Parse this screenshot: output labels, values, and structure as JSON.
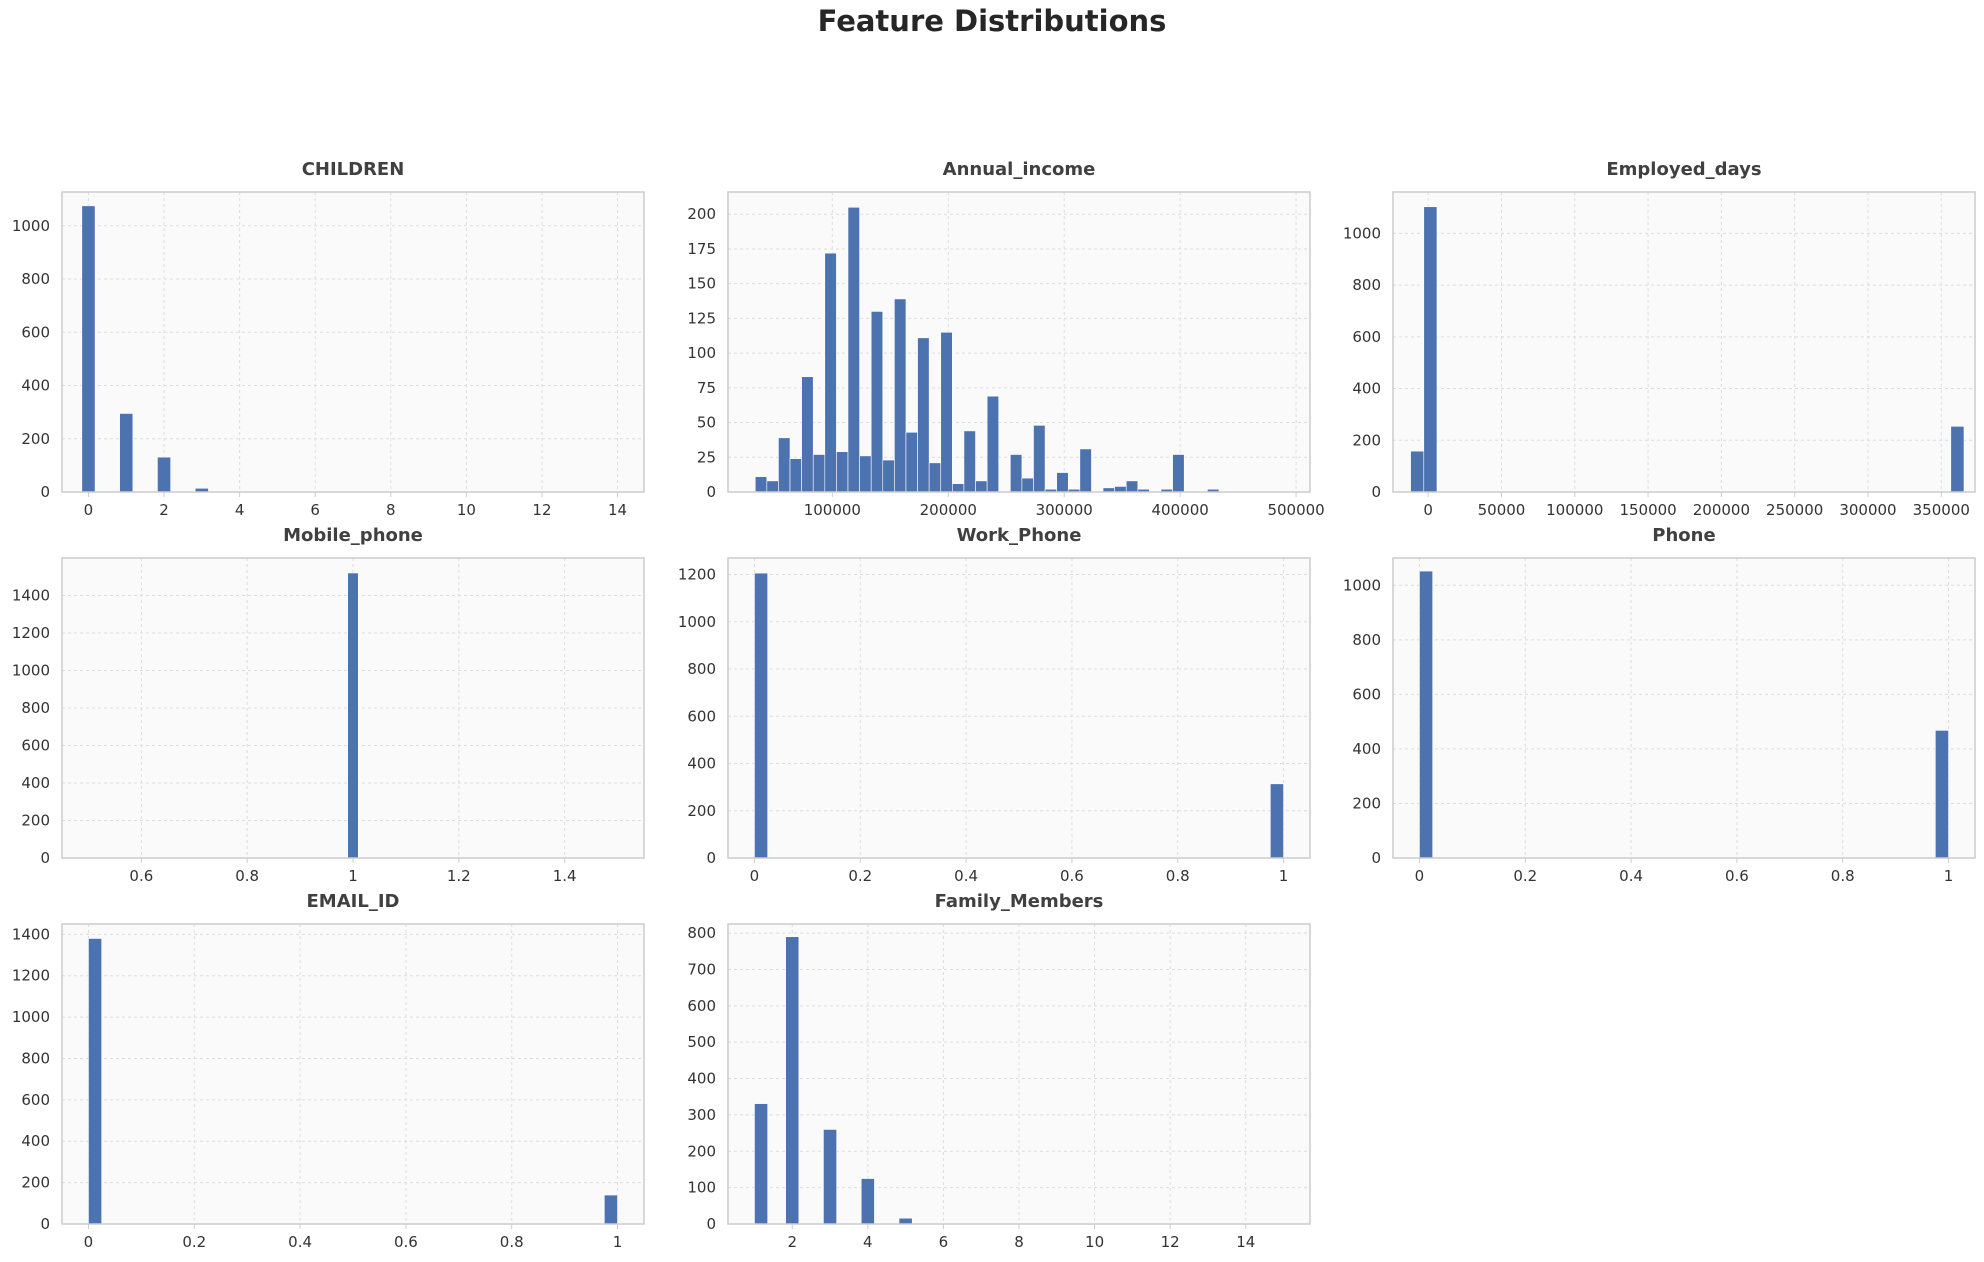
{
  "figure": {
    "title": "Feature Distributions"
  },
  "style": {
    "bar_color": "#4c72b0",
    "plot_bg": "#fafafa",
    "grid_color": "#dddddd",
    "spine_color": "#cccccc",
    "tick_color": "#333333"
  },
  "chart_data": [
    {
      "type": "bar",
      "title": "CHILDREN",
      "xlabel": "",
      "ylabel": "",
      "xlim": [
        -0.7,
        14.7
      ],
      "ylim": [
        0,
        1127
      ],
      "bin_width": 0.35,
      "xticks": [
        0,
        2,
        4,
        6,
        8,
        10,
        12,
        14
      ],
      "yticks": [
        0,
        200,
        400,
        600,
        800,
        1000
      ],
      "grid": true,
      "x": [
        0,
        1,
        2,
        3
      ],
      "values": [
        1075,
        295,
        131,
        14
      ]
    },
    {
      "type": "bar",
      "title": "Annual_income",
      "xlabel": "",
      "ylabel": "",
      "xlim": [
        10000,
        512000
      ],
      "ylim": [
        0,
        216
      ],
      "bin_width": 10000,
      "xticks": [
        100000,
        200000,
        300000,
        400000,
        500000
      ],
      "yticks": [
        0,
        25,
        50,
        75,
        100,
        125,
        150,
        175,
        200
      ],
      "grid": true,
      "x": [
        38500,
        48500,
        58500,
        68500,
        78500,
        88500,
        98500,
        108500,
        118500,
        128500,
        138500,
        148500,
        158500,
        168500,
        178500,
        188500,
        198500,
        208500,
        218500,
        228500,
        238500,
        248500,
        258500,
        268500,
        278500,
        288500,
        298500,
        308500,
        318500,
        328500,
        338500,
        348500,
        358500,
        368500,
        378500,
        388500,
        398500,
        408500,
        418500,
        428500,
        438500,
        448500,
        458500,
        468500,
        478500,
        488500
      ],
      "values": [
        11,
        8,
        39,
        24,
        83,
        27,
        172,
        29,
        205,
        26,
        130,
        23,
        139,
        43,
        111,
        21,
        115,
        6,
        44,
        8,
        69,
        0,
        27,
        10,
        48,
        2,
        14,
        2,
        31,
        0,
        3,
        4,
        8,
        2,
        0,
        2,
        27,
        0,
        0,
        2,
        0,
        0,
        0,
        0,
        0,
        0
      ]
    },
    {
      "type": "bar",
      "title": "Employed_days",
      "xlabel": "",
      "ylabel": "",
      "xlim": [
        -24000,
        373000
      ],
      "ylim": [
        0,
        1160
      ],
      "bin_width": 9000,
      "xticks": [
        0,
        50000,
        100000,
        150000,
        200000,
        250000,
        300000,
        350000
      ],
      "yticks": [
        0,
        200,
        400,
        600,
        800,
        1000
      ],
      "grid": true,
      "x": [
        -7500,
        1500,
        361000
      ],
      "values": [
        158,
        1103,
        254
      ]
    },
    {
      "type": "bar",
      "title": "Mobile_phone",
      "xlabel": "",
      "ylabel": "",
      "xlim": [
        0.45,
        1.55
      ],
      "ylim": [
        0,
        1600
      ],
      "bin_width": 0.02,
      "xticks": [
        0.6,
        0.8,
        1.0,
        1.2,
        1.4
      ],
      "yticks": [
        0,
        200,
        400,
        600,
        800,
        1000,
        1200,
        1400
      ],
      "grid": true,
      "x": [
        1.0
      ],
      "values": [
        1520
      ]
    },
    {
      "type": "bar",
      "title": "Work_Phone",
      "xlabel": "",
      "ylabel": "",
      "xlim": [
        -0.05,
        1.05
      ],
      "ylim": [
        0,
        1270
      ],
      "bin_width": 0.025,
      "xticks": [
        0.0,
        0.2,
        0.4,
        0.6,
        0.8,
        1.0
      ],
      "yticks": [
        0,
        200,
        400,
        600,
        800,
        1000,
        1200
      ],
      "grid": true,
      "x": [
        0.0125,
        0.9875
      ],
      "values": [
        1206,
        314
      ]
    },
    {
      "type": "bar",
      "title": "Phone",
      "xlabel": "",
      "ylabel": "",
      "xlim": [
        -0.05,
        1.05
      ],
      "ylim": [
        0,
        1100
      ],
      "bin_width": 0.025,
      "xticks": [
        0.0,
        0.2,
        0.4,
        0.6,
        0.8,
        1.0
      ],
      "yticks": [
        0,
        200,
        400,
        600,
        800,
        1000
      ],
      "grid": true,
      "x": [
        0.0125,
        0.9875
      ],
      "values": [
        1052,
        468
      ]
    },
    {
      "type": "bar",
      "title": "EMAIL_ID",
      "xlabel": "",
      "ylabel": "",
      "xlim": [
        -0.05,
        1.05
      ],
      "ylim": [
        0,
        1450
      ],
      "bin_width": 0.025,
      "xticks": [
        0.0,
        0.2,
        0.4,
        0.6,
        0.8,
        1.0
      ],
      "yticks": [
        0,
        200,
        400,
        600,
        800,
        1000,
        1200,
        1400
      ],
      "grid": true,
      "x": [
        0.0125,
        0.9875
      ],
      "values": [
        1380,
        140
      ]
    },
    {
      "type": "bar",
      "title": "Family_Members",
      "xlabel": "",
      "ylabel": "",
      "xlim": [
        0.3,
        15.7
      ],
      "ylim": [
        0,
        825
      ],
      "bin_width": 0.35,
      "xticks": [
        2,
        4,
        6,
        8,
        10,
        12,
        14
      ],
      "yticks": [
        0,
        100,
        200,
        300,
        400,
        500,
        600,
        700,
        800
      ],
      "grid": true,
      "x": [
        1.175,
        2.0,
        3.0,
        4.0,
        5.0
      ],
      "values": [
        331,
        790,
        260,
        125,
        16
      ]
    }
  ]
}
